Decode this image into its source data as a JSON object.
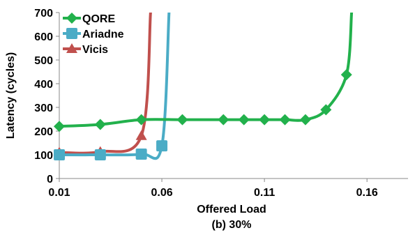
{
  "chart_data": {
    "type": "line",
    "title": "",
    "caption": "(b) 30%",
    "xlabel": "Offered Load",
    "ylabel": "Latency (cycles)",
    "xlim": [
      0.01,
      0.18
    ],
    "ylim": [
      0,
      700
    ],
    "xticks": [
      0.01,
      0.06,
      0.11,
      0.16
    ],
    "xtick_labels": [
      "0.01",
      "0.06",
      "0.11",
      "0.16"
    ],
    "yticks": [
      0,
      100,
      200,
      300,
      400,
      500,
      600,
      700
    ],
    "ytick_labels": [
      "0",
      "100",
      "200",
      "300",
      "400",
      "500",
      "600",
      "700"
    ],
    "grid": false,
    "legend_position": "top-left",
    "series": [
      {
        "name": "QORE",
        "color": "#22b14c",
        "marker": "diamond",
        "x": [
          0.01,
          0.03,
          0.05,
          0.07,
          0.09,
          0.1,
          0.11,
          0.12,
          0.13,
          0.14,
          0.15,
          0.1525
        ],
        "y": [
          220,
          228,
          248,
          248,
          248,
          248,
          248,
          248,
          248,
          290,
          438,
          700
        ],
        "marked": [
          true,
          true,
          true,
          true,
          true,
          true,
          true,
          true,
          true,
          true,
          true,
          false
        ]
      },
      {
        "name": "Ariadne",
        "color": "#4bacc6",
        "marker": "square",
        "x": [
          0.01,
          0.03,
          0.05,
          0.06,
          0.0635
        ],
        "y": [
          100,
          100,
          103,
          138,
          700
        ],
        "marked": [
          true,
          true,
          true,
          true,
          false
        ]
      },
      {
        "name": "Vicis",
        "color": "#c0504d",
        "marker": "triangle",
        "x": [
          0.01,
          0.03,
          0.05,
          0.0545
        ],
        "y": [
          110,
          113,
          180,
          700
        ],
        "marked": [
          true,
          true,
          true,
          false
        ]
      }
    ]
  }
}
